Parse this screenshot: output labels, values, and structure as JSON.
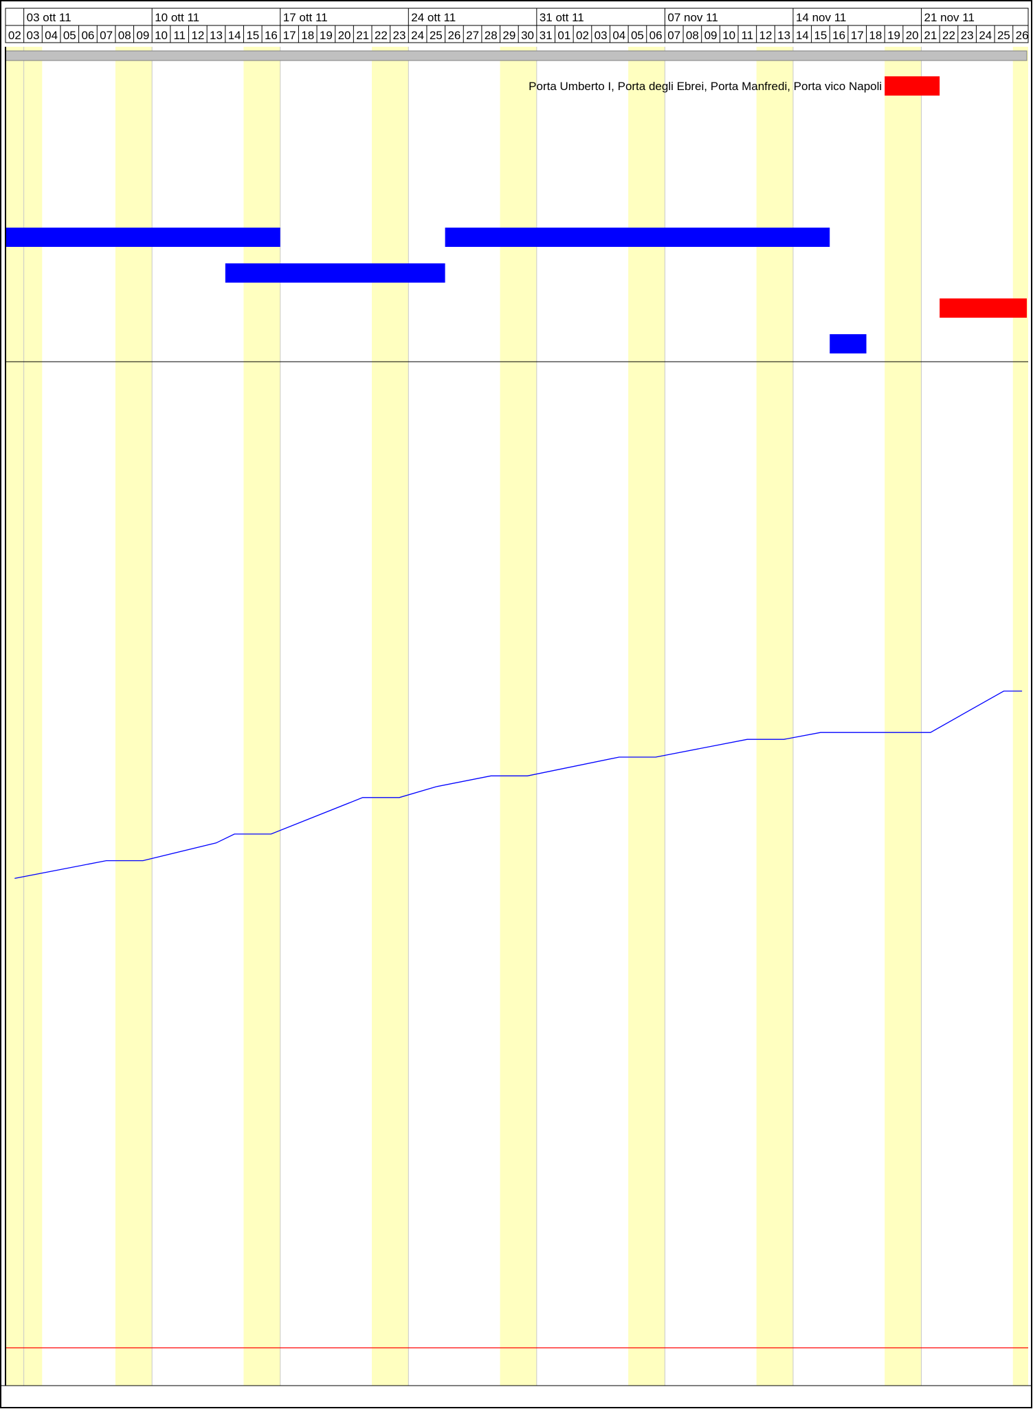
{
  "chart_data": {
    "type": "gantt",
    "timescale": {
      "start_day": "2011-10-02",
      "end_day": "2011-11-26",
      "weeks": [
        "03 ott 11",
        "10 ott 11",
        "17 ott 11",
        "24 ott 11",
        "31 ott 11",
        "07 nov 11",
        "14 nov 11",
        "21 nov 11"
      ],
      "days": [
        "02",
        "03",
        "04",
        "05",
        "06",
        "07",
        "08",
        "09",
        "10",
        "11",
        "12",
        "13",
        "14",
        "15",
        "16",
        "17",
        "18",
        "19",
        "20",
        "21",
        "22",
        "23",
        "24",
        "25",
        "26",
        "27",
        "28",
        "29",
        "30",
        "31",
        "01",
        "02",
        "03",
        "04",
        "05",
        "06",
        "07",
        "08",
        "09",
        "10",
        "11",
        "12",
        "13",
        "14",
        "15",
        "16",
        "17",
        "18",
        "19",
        "20",
        "21",
        "22",
        "23",
        "24",
        "25",
        "26"
      ],
      "weekend_pairs_start": [
        "2011-10-02",
        "2011-10-08",
        "2011-10-15",
        "2011-10-22",
        "2011-10-29",
        "2011-11-05",
        "2011-11-12",
        "2011-11-19",
        "2011-11-26"
      ]
    },
    "summary_bar": {
      "start": "2011-10-02",
      "end": "2011-11-26",
      "color": "#c0c0c0"
    },
    "tasks": [
      {
        "label": "Porta Umberto I, Porta degli Ebrei, Porta Manfredi, Porta vico Napoli",
        "start": "2011-11-19",
        "end": "2011-11-22",
        "row": 0,
        "color": "#ff0000"
      },
      {
        "label": "",
        "start": "2011-10-02",
        "end": "2011-10-17",
        "row": 1,
        "color": "#0000ff"
      },
      {
        "label": "",
        "start": "2011-10-26",
        "end": "2011-11-16",
        "row": 1,
        "color": "#0000ff"
      },
      {
        "label": "",
        "start": "2011-10-14",
        "end": "2011-10-26",
        "row": 2,
        "color": "#0000ff"
      },
      {
        "label": "",
        "start": "2011-11-22",
        "end": "2011-11-27",
        "row": 3,
        "color": "#ff0000"
      },
      {
        "label": "",
        "start": "2011-11-16",
        "end": "2011-11-18",
        "row": 4,
        "color": "#0000ff"
      }
    ],
    "progress_curve": {
      "color": "#0000ff",
      "note": "cumulative curve, value as fraction of curve-panel height from bottom",
      "points": [
        [
          "2011-10-02",
          0.476
        ],
        [
          "2011-10-07",
          0.494
        ],
        [
          "2011-10-09",
          0.494
        ],
        [
          "2011-10-13",
          0.512
        ],
        [
          "2011-10-14",
          0.521
        ],
        [
          "2011-10-16",
          0.521
        ],
        [
          "2011-10-21",
          0.558
        ],
        [
          "2011-10-23",
          0.558
        ],
        [
          "2011-10-25",
          0.569
        ],
        [
          "2011-10-28",
          0.58
        ],
        [
          "2011-10-30",
          0.58
        ],
        [
          "2011-11-04",
          0.599
        ],
        [
          "2011-11-06",
          0.599
        ],
        [
          "2011-11-11",
          0.617
        ],
        [
          "2011-11-13",
          0.617
        ],
        [
          "2011-11-15",
          0.624
        ],
        [
          "2011-11-21",
          0.624
        ],
        [
          "2011-11-25",
          0.666
        ],
        [
          "2011-11-26",
          0.666
        ]
      ]
    },
    "reference_line": {
      "color": "#ff0000",
      "level": 0
    },
    "colors": {
      "weekend": "#ffffc0",
      "gridline": "#c8c8c8",
      "frame": "#000000"
    }
  }
}
